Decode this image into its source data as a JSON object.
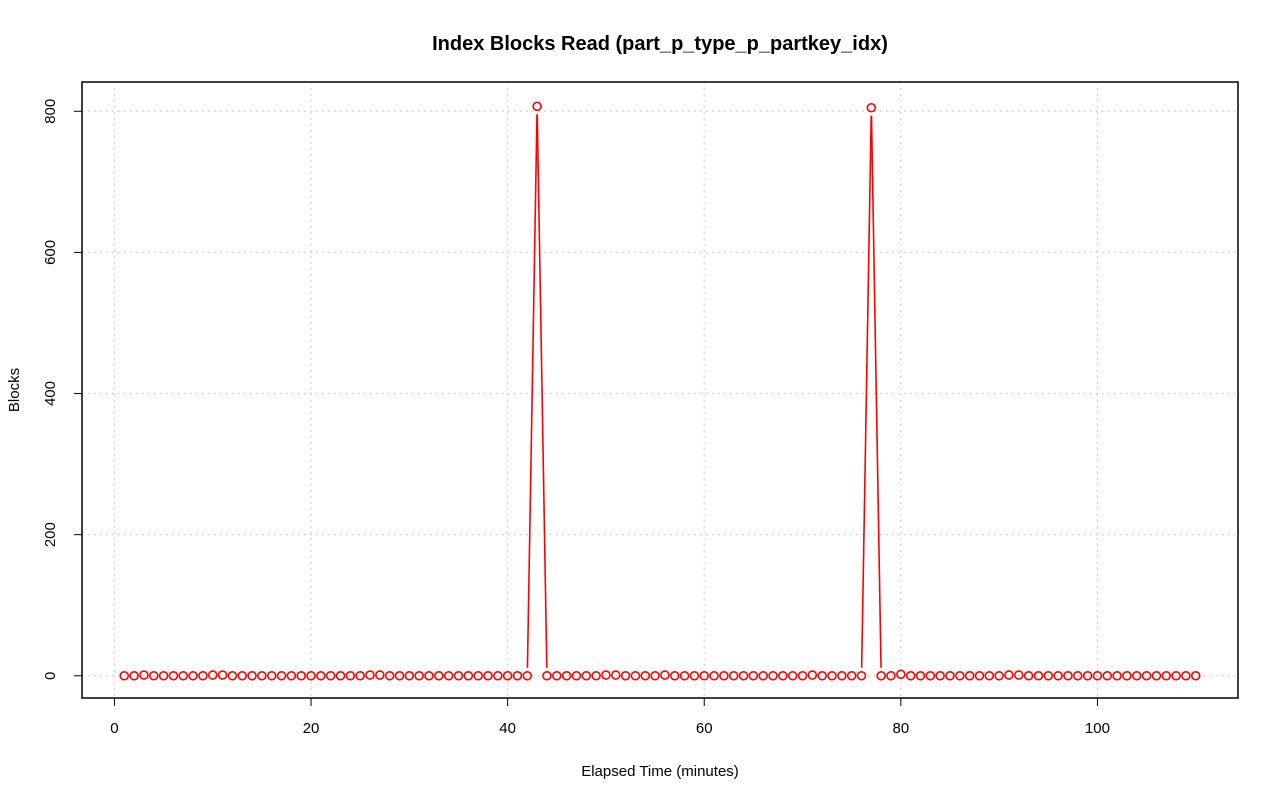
{
  "chart_data": {
    "type": "line",
    "title": "Index Blocks Read (part_p_type_p_partkey_idx)",
    "xlabel": "Elapsed Time (minutes)",
    "ylabel": "Blocks",
    "xlim": [
      -3.3,
      114.3
    ],
    "ylim": [
      -31.5,
      841.5
    ],
    "xticks": [
      0,
      20,
      40,
      60,
      80,
      100
    ],
    "yticks": [
      0,
      200,
      400,
      600,
      800
    ],
    "grid": true,
    "grid_style": "dotted",
    "legend": "none",
    "series": [
      {
        "color": "#ff0000",
        "marker": "open-circle",
        "x": [
          1,
          2,
          3,
          4,
          5,
          6,
          7,
          8,
          9,
          10,
          11,
          12,
          13,
          14,
          15,
          16,
          17,
          18,
          19,
          20,
          21,
          22,
          23,
          24,
          25,
          26,
          27,
          28,
          29,
          30,
          31,
          32,
          33,
          34,
          35,
          36,
          37,
          38,
          39,
          40,
          41,
          42,
          43,
          44,
          45,
          46,
          47,
          48,
          49,
          50,
          51,
          52,
          53,
          54,
          55,
          56,
          57,
          58,
          59,
          60,
          61,
          62,
          63,
          64,
          65,
          66,
          67,
          68,
          69,
          70,
          71,
          72,
          73,
          74,
          75,
          76,
          77,
          78,
          79,
          80,
          81,
          82,
          83,
          84,
          85,
          86,
          87,
          88,
          89,
          90,
          91,
          92,
          93,
          94,
          95,
          96,
          97,
          98,
          99,
          100,
          101,
          102,
          103,
          104,
          105,
          106,
          107,
          108,
          109,
          110
        ],
        "values": [
          0,
          0,
          1,
          0,
          0,
          0,
          0,
          0,
          0,
          1,
          1,
          0,
          0,
          0,
          0,
          0,
          0,
          0,
          0,
          0,
          0,
          0,
          0,
          0,
          0,
          1,
          1,
          0,
          0,
          0,
          0,
          0,
          0,
          0,
          0,
          0,
          0,
          0,
          0,
          0,
          0,
          0,
          807,
          0,
          0,
          0,
          0,
          0,
          0,
          1,
          1,
          0,
          0,
          0,
          0,
          1,
          0,
          0,
          0,
          0,
          0,
          0,
          0,
          0,
          0,
          0,
          0,
          0,
          0,
          0,
          1,
          0,
          0,
          0,
          0,
          0,
          805,
          0,
          0,
          2,
          0,
          0,
          0,
          0,
          0,
          0,
          0,
          0,
          0,
          0,
          1,
          1,
          0,
          0,
          0,
          0,
          0,
          0,
          0,
          0,
          0,
          0,
          0,
          0,
          0,
          0,
          0,
          0,
          0,
          0
        ]
      }
    ]
  }
}
